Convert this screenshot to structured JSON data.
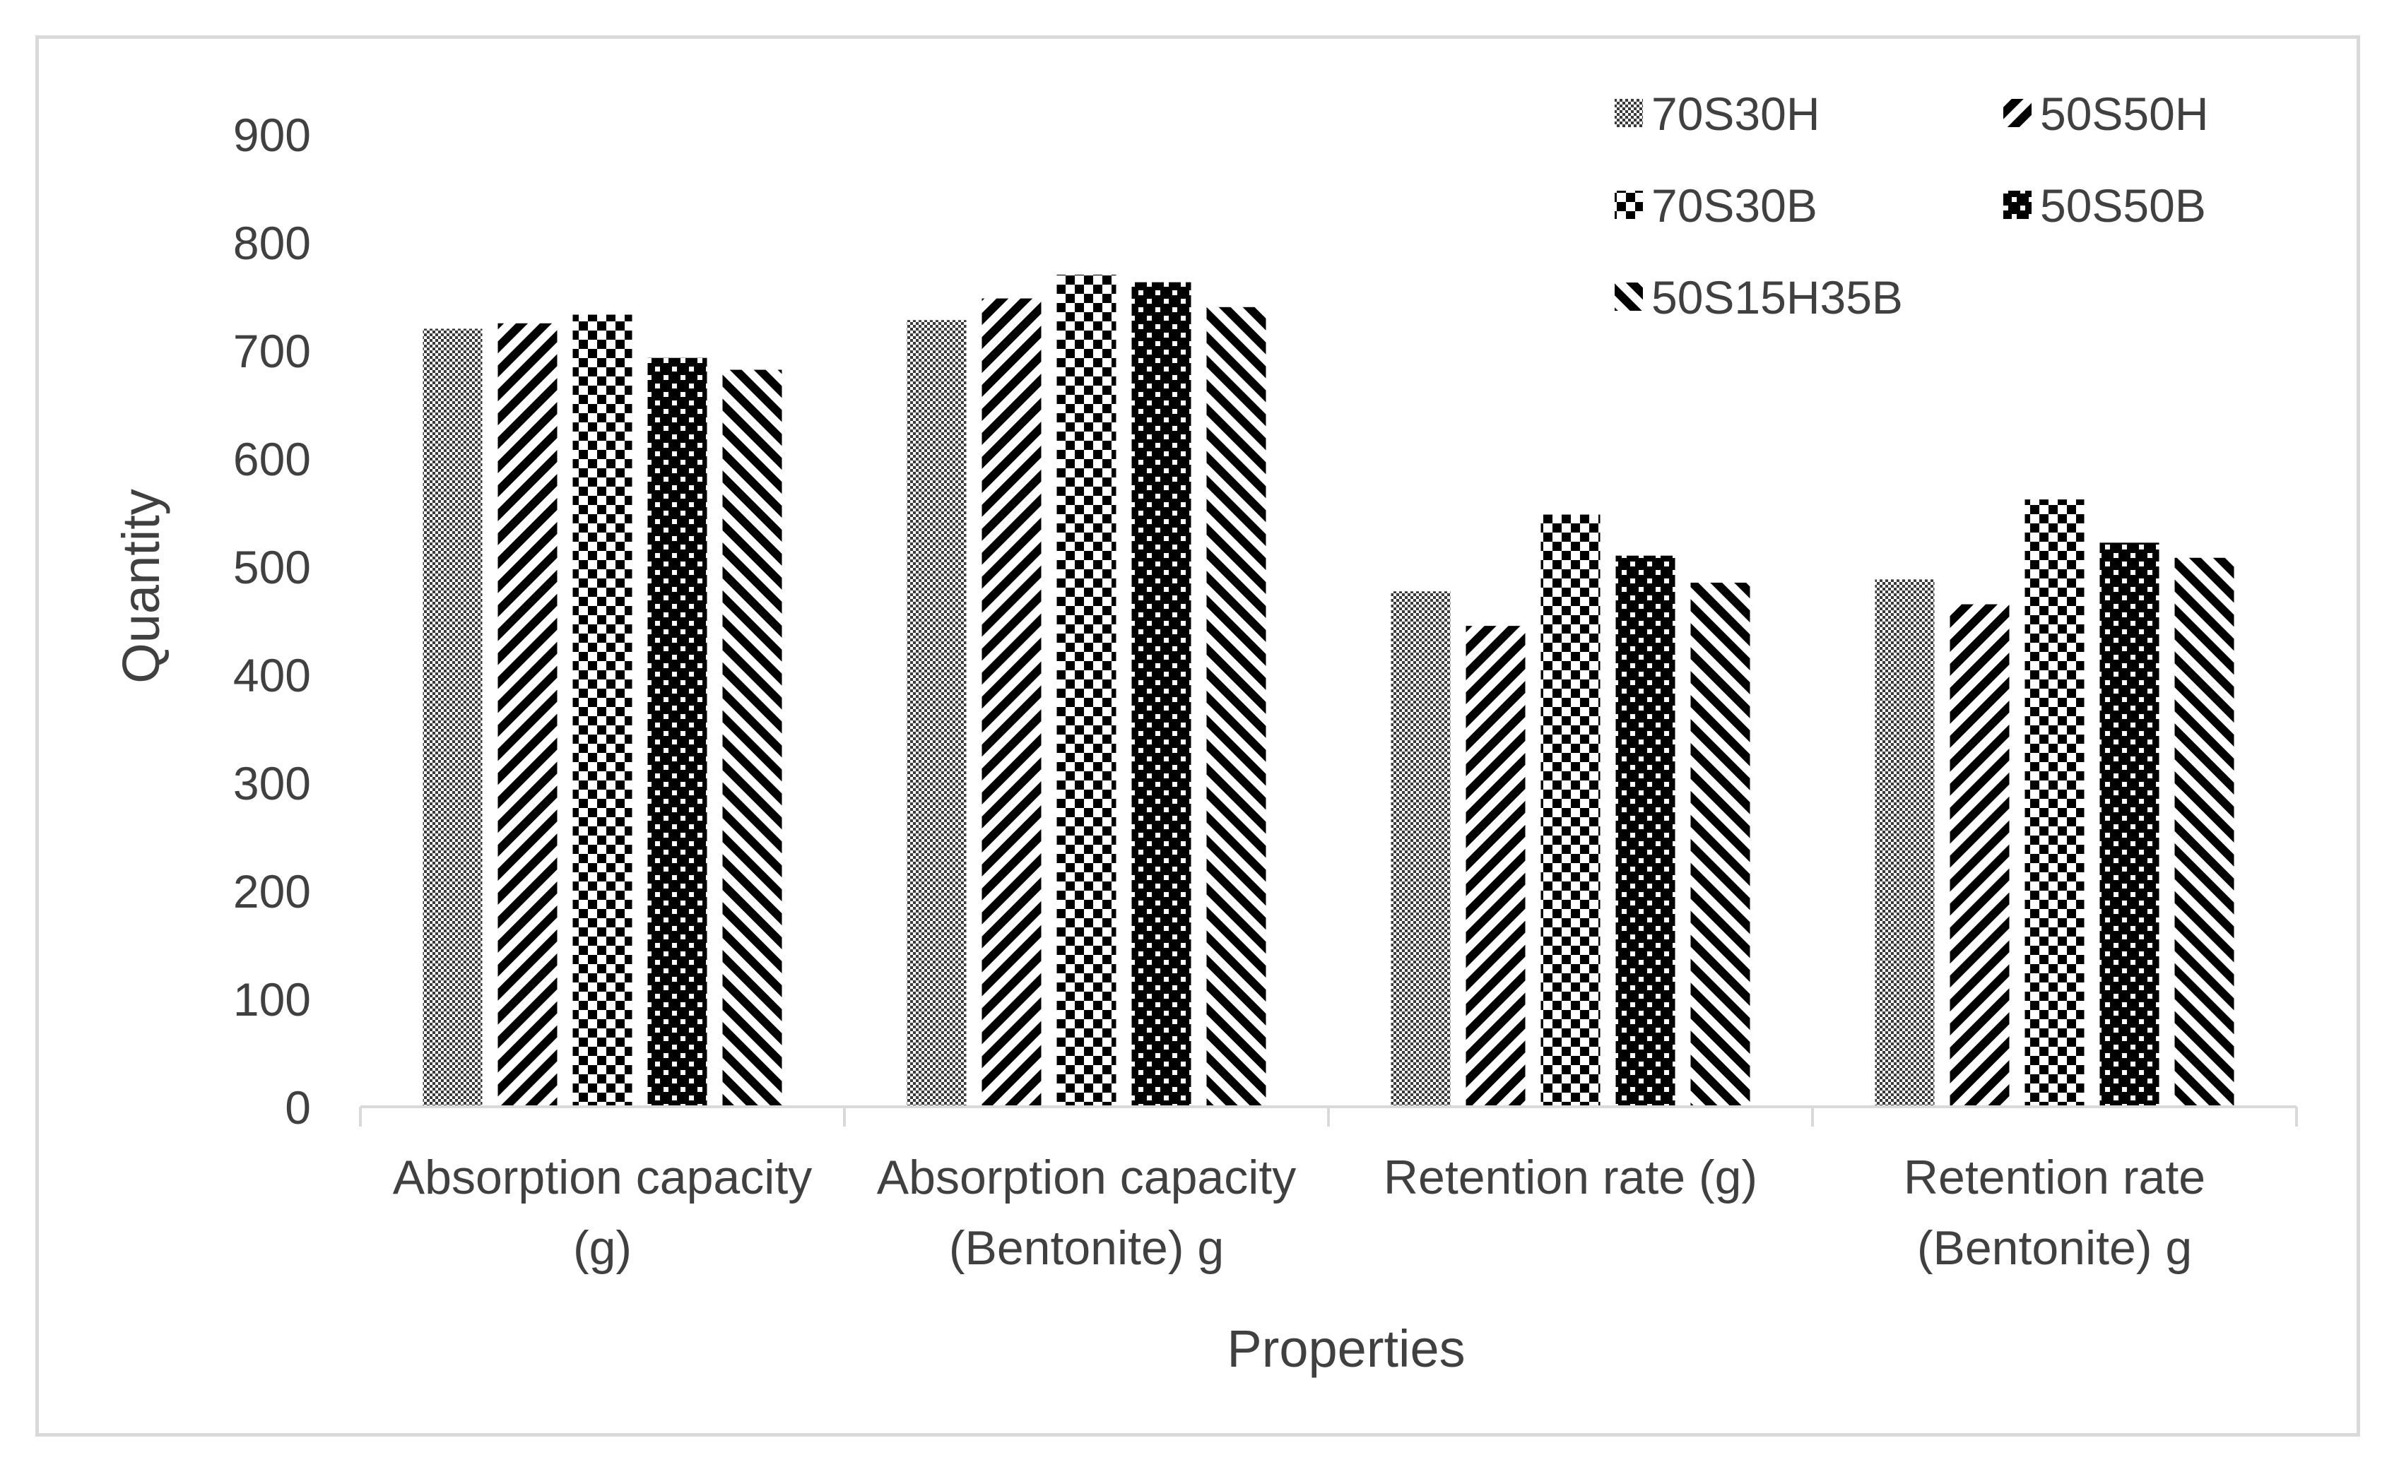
{
  "chart_data": {
    "type": "bar",
    "title": "",
    "xlabel": "Properties",
    "ylabel": "Quantity",
    "ylim": [
      0,
      900
    ],
    "yticks": [
      0,
      100,
      200,
      300,
      400,
      500,
      600,
      700,
      800,
      900
    ],
    "grid": false,
    "legend_position": "top-right",
    "categories": [
      [
        "Absorption capacity",
        "(g)"
      ],
      [
        "Absorption capacity",
        "(Bentonite) g"
      ],
      [
        "Retention rate (g)"
      ],
      [
        "Retention rate",
        "(Bentonite) g"
      ]
    ],
    "series": [
      {
        "name": "70S30H",
        "pattern": "dots",
        "values": [
          720,
          728,
          477,
          488
        ]
      },
      {
        "name": "50S50H",
        "pattern": "diag-down",
        "values": [
          725,
          748,
          445,
          465
        ]
      },
      {
        "name": "70S30B",
        "pattern": "checker",
        "values": [
          733,
          770,
          548,
          562
        ]
      },
      {
        "name": "50S50B",
        "pattern": "dark-checker",
        "values": [
          693,
          763,
          510,
          522
        ]
      },
      {
        "name": "50S15H35B",
        "pattern": "diag-up",
        "values": [
          682,
          740,
          485,
          508
        ]
      }
    ]
  },
  "colors": {
    "text": "#404040",
    "axis": "#d9d9d9",
    "frame": "#d9d9d9"
  }
}
